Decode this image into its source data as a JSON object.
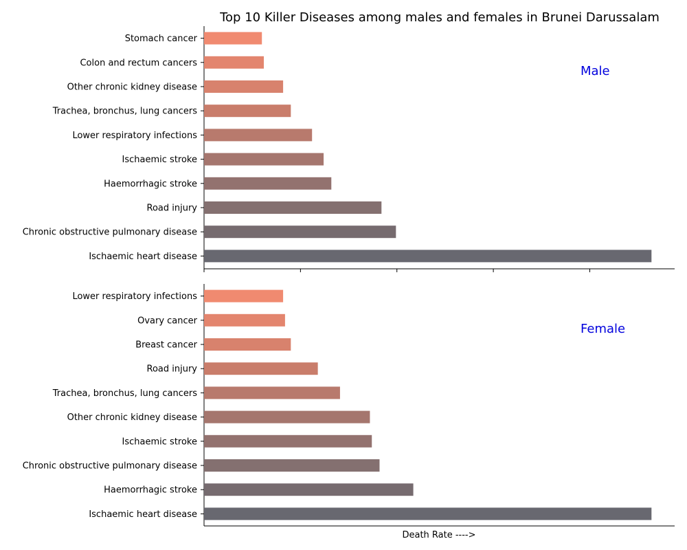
{
  "chart_data": {
    "type": "bar",
    "orientation": "horizontal",
    "title": "Top 10 Killer Diseases among males and females in Brunei Darussalam",
    "xlabel": "Death Rate ---->",
    "xlim": [
      0,
      24.4
    ],
    "x_tick_labels_shown": false,
    "grid": false,
    "colors": [
      "#f08a70",
      "#e3856e",
      "#d8826d",
      "#c97d6b",
      "#b87a6d",
      "#a5766e",
      "#93726f",
      "#847070",
      "#766b6f",
      "#686870"
    ],
    "panels": [
      {
        "label": "Male",
        "categories": [
          "Stomach cancer",
          "Colon and rectum cancers",
          "Other chronic kidney disease",
          "Trachea, bronchus, lung cancers",
          "Lower respiratory infections",
          "Ischaemic stroke",
          "Haemorrhagic stroke",
          "Road injury",
          "Chronic obstructive pulmonary disease",
          "Ischaemic heart disease"
        ],
        "values": [
          3.0,
          3.1,
          4.1,
          4.5,
          5.6,
          6.2,
          6.6,
          9.2,
          9.95,
          23.2
        ]
      },
      {
        "label": "Female",
        "categories": [
          "Lower respiratory infections",
          "Ovary cancer",
          "Breast cancer",
          "Road injury",
          "Trachea, bronchus, lung cancers",
          "Other chronic kidney disease",
          "Ischaemic stroke",
          "Chronic obstructive pulmonary disease",
          "Haemorrhagic stroke",
          "Ischaemic heart disease"
        ],
        "values": [
          4.1,
          4.2,
          4.5,
          5.9,
          7.05,
          8.6,
          8.7,
          9.1,
          10.85,
          23.2
        ]
      }
    ]
  }
}
